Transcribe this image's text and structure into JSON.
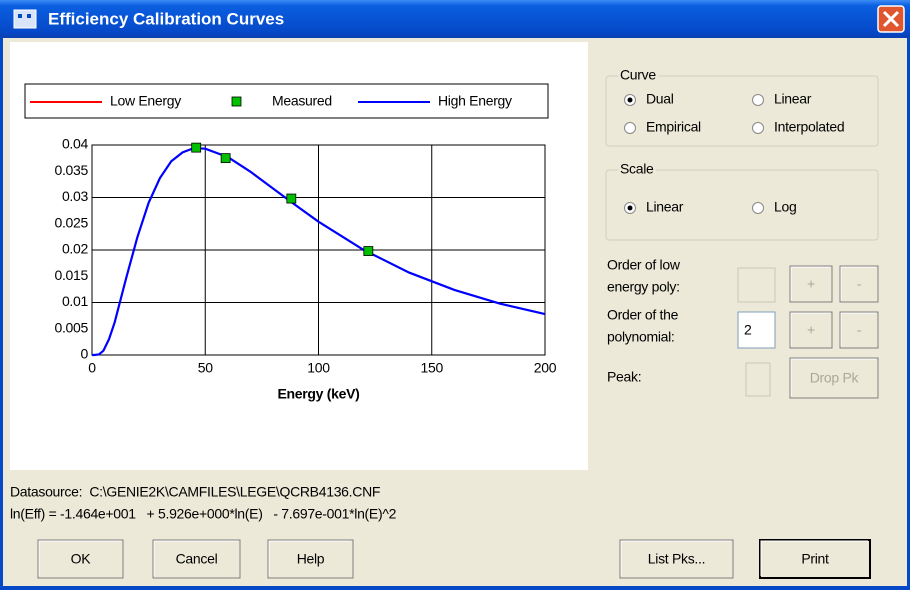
{
  "window": {
    "title": "Efficiency Calibration Curves"
  },
  "chart_data": {
    "type": "line",
    "xlabel": "Energy (keV)",
    "xlim": [
      0,
      200
    ],
    "xticks": [
      0,
      50,
      100,
      150,
      200
    ],
    "ylim": [
      0,
      0.04
    ],
    "yticks": [
      0,
      0.005,
      0.01,
      0.015,
      0.02,
      0.025,
      0.03,
      0.035,
      0.04
    ],
    "grid": true,
    "series": [
      {
        "name": "Low Energy",
        "color": "#ff0000"
      },
      {
        "name": "Measured",
        "color": "#00c000",
        "marker": "square",
        "x": [
          46,
          59,
          88,
          122
        ],
        "values": [
          0.0395,
          0.0375,
          0.0298,
          0.0198
        ]
      },
      {
        "name": "High Energy",
        "color": "#0000ff",
        "x": [
          0,
          1,
          3,
          5,
          7.5,
          10,
          15,
          20,
          25,
          30,
          35,
          40,
          45,
          50,
          60,
          70,
          80,
          90,
          100,
          120,
          140,
          160,
          180,
          200
        ],
        "values": [
          0,
          0,
          0.0001,
          0.0008,
          0.003,
          0.0062,
          0.0145,
          0.0224,
          0.029,
          0.0337,
          0.0369,
          0.0386,
          0.0394,
          0.0393,
          0.0377,
          0.0349,
          0.0317,
          0.0285,
          0.0254,
          0.02,
          0.0157,
          0.0124,
          0.0098,
          0.0078
        ]
      }
    ]
  },
  "curve_group": {
    "label": "Curve",
    "options": [
      {
        "label": "Dual",
        "selected": true
      },
      {
        "label": "Linear",
        "selected": false
      },
      {
        "label": "Empirical",
        "selected": false
      },
      {
        "label": "Interpolated",
        "selected": false
      }
    ]
  },
  "scale_group": {
    "label": "Scale",
    "options": [
      {
        "label": "Linear",
        "selected": true
      },
      {
        "label": "Log",
        "selected": false
      }
    ]
  },
  "low_order": {
    "label": [
      "Order of low",
      "energy poly:"
    ],
    "buttons": [
      "+",
      "-"
    ]
  },
  "poly_order": {
    "label": [
      "Order of the",
      "polynomial:"
    ],
    "value": 2,
    "buttons": [
      "+",
      "-"
    ]
  },
  "peak": {
    "label": "Peak:",
    "button": "Drop Pk"
  },
  "datasource": "Datasource:  C:\\GENIE2K\\CAMFILES\\LEGE\\QCRB4136.CNF",
  "formula": "ln(Eff) = -1.464e+001   + 5.926e+000*ln(E)   - 7.697e-001*ln(E)^2",
  "buttons": [
    "OK",
    "Cancel",
    "Help",
    "List Pks...",
    "Print"
  ]
}
